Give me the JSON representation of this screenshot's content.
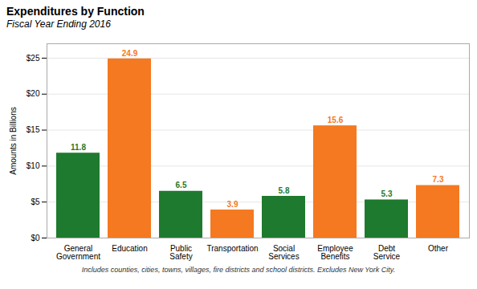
{
  "chart_data": {
    "type": "bar",
    "title": "Expenditures by Function",
    "subtitle": "Fiscal Year Ending 2016",
    "ylabel": "Amounts in Billions",
    "footnote": "Includes counties, cities, towns, villages, fire districts and school districts. Excludes New York City.",
    "categories": [
      "General\nGovernment",
      "Education",
      "Public\nSafety",
      "Transportation",
      "Social\nServices",
      "Employee\nBenefits",
      "Debt\nService",
      "Other"
    ],
    "values": [
      11.8,
      24.9,
      6.5,
      3.9,
      5.8,
      15.6,
      5.3,
      7.3
    ],
    "colors": [
      "#1e7a2e",
      "#f47920",
      "#1e7a2e",
      "#f47920",
      "#1e7a2e",
      "#f47920",
      "#1e7a2e",
      "#f47920"
    ],
    "ylim": [
      0,
      27
    ],
    "yticks": [
      {
        "value": 0,
        "label": "$0"
      },
      {
        "value": 5,
        "label": "$5"
      },
      {
        "value": 10,
        "label": "$10"
      },
      {
        "value": 15,
        "label": "$15"
      },
      {
        "value": 20,
        "label": "$20"
      },
      {
        "value": 25,
        "label": "$25"
      }
    ],
    "grid": true,
    "data_labels": true
  }
}
